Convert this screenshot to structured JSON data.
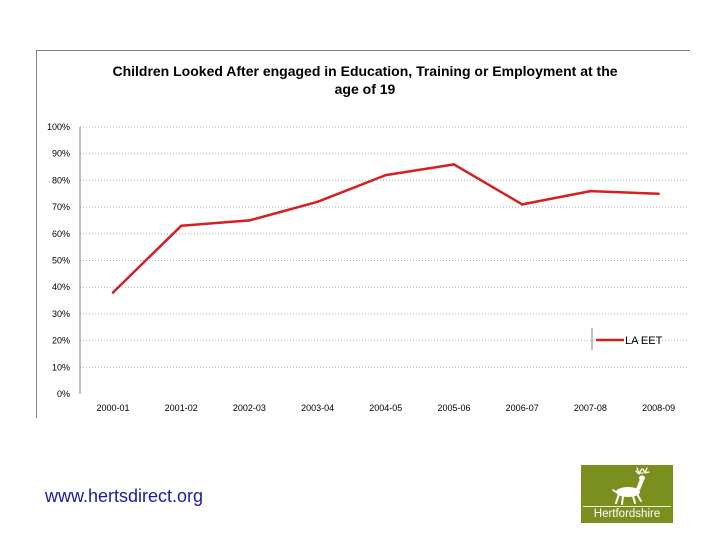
{
  "chart_data": {
    "type": "line",
    "title": "Children Looked After engaged in Education, Training or Employment at the age of 19",
    "categories": [
      "2000-01",
      "2001-02",
      "2002-03",
      "2003-04",
      "2004-05",
      "2005-06",
      "2006-07",
      "2007-08",
      "2008-09"
    ],
    "series": [
      {
        "name": "LA EET",
        "color": "#d42020",
        "values": [
          38,
          63,
          65,
          72,
          82,
          86,
          71,
          76,
          75
        ]
      }
    ],
    "ylim": [
      0,
      100
    ],
    "yticks": [
      "0%",
      "10%",
      "20%",
      "30%",
      "40%",
      "50%",
      "60%",
      "70%",
      "80%",
      "90%",
      "100%"
    ],
    "xlabel": "",
    "ylabel": "",
    "grid": true,
    "legend_position": "right"
  },
  "footer": {
    "url": "www.hertsdirect.org"
  },
  "logo": {
    "text": "Hertfordshire",
    "icon": "hart-icon",
    "color": "#7a8f1e"
  }
}
